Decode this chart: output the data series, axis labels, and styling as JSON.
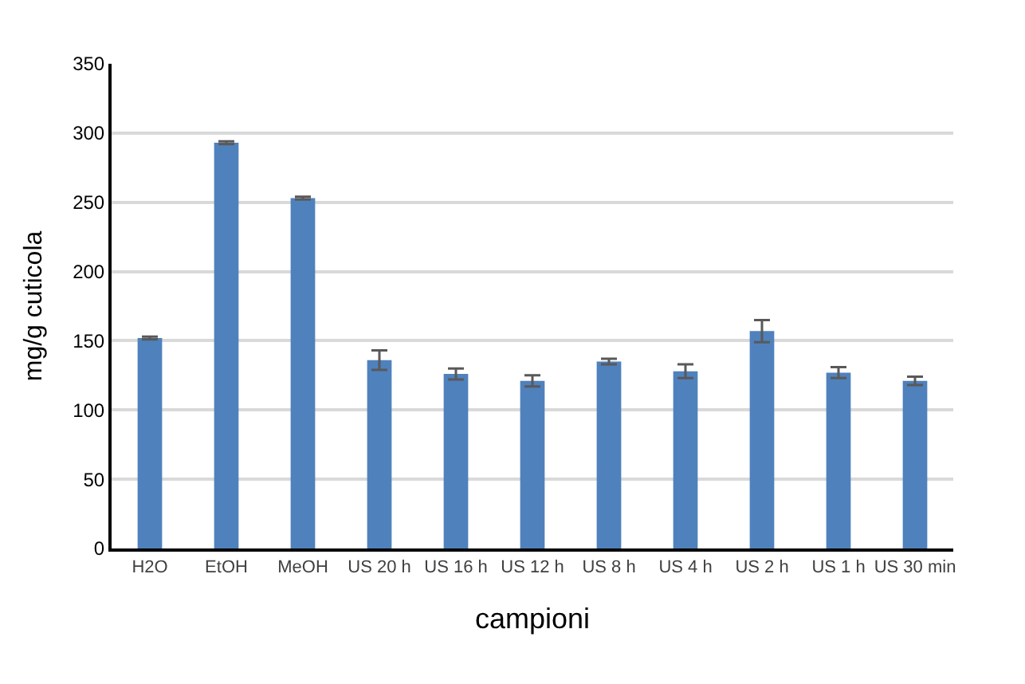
{
  "chart_data": {
    "type": "bar",
    "xlabel": "campioni",
    "ylabel": "mg/g cuticola",
    "categories": [
      "H2O",
      "EtOH",
      "MeOH",
      "US 20 h",
      "US 16 h",
      "US 12 h",
      "US 8 h",
      "US 4 h",
      "US 2 h",
      "US 1 h",
      "US 30 min"
    ],
    "values": [
      152,
      293,
      253,
      136,
      126,
      121,
      135,
      128,
      157,
      127,
      121
    ],
    "errors": [
      1,
      1,
      1,
      7,
      4,
      4,
      2,
      5,
      8,
      4,
      3
    ],
    "color": "#4f81bd",
    "ylim": [
      0,
      350
    ],
    "yticks": [
      0,
      50,
      100,
      150,
      200,
      250,
      300,
      350
    ],
    "grid": "y",
    "legend": false
  }
}
